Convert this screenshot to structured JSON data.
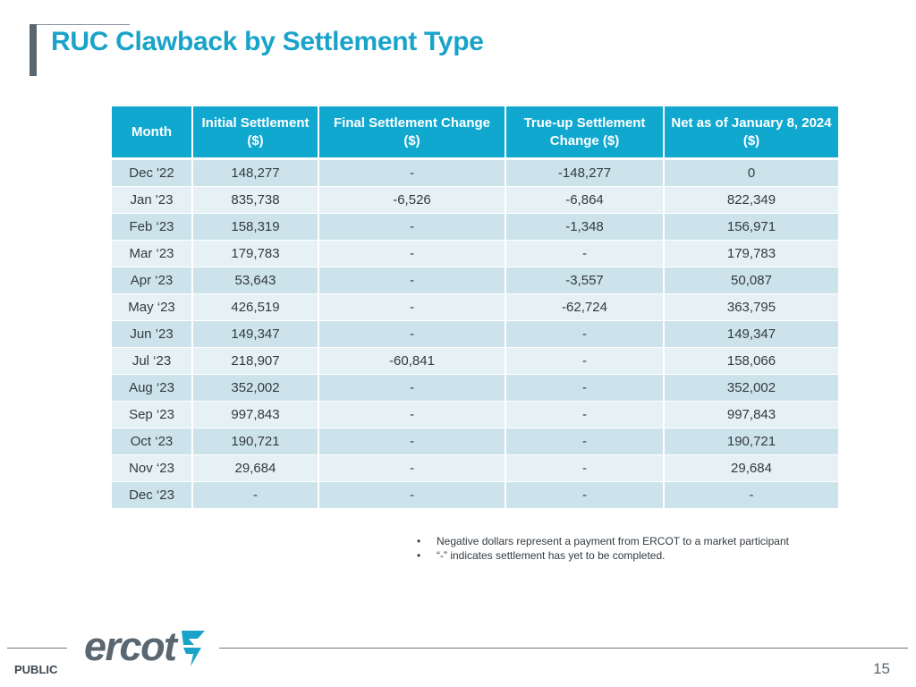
{
  "slide": {
    "title": "RUC Clawback by Settlement Type",
    "page_number": "15",
    "classification": "PUBLIC",
    "logo_text": "ercot",
    "brand_color": "#1aa3c9",
    "header_color": "#11a8cf"
  },
  "table": {
    "headers": {
      "month": "Month",
      "initial": "Initial Settlement ($)",
      "final": "Final Settlement Change ($)",
      "trueup": "True-up Settlement Change ($)",
      "net": "Net as of January 8, 2024 ($)"
    },
    "rows": [
      {
        "month": "Dec '22",
        "initial": "148,277",
        "final": "-",
        "trueup": "-148,277",
        "net": "0"
      },
      {
        "month": "Jan '23",
        "initial": "835,738",
        "final": "-6,526",
        "trueup": "-6,864",
        "net": "822,349"
      },
      {
        "month": "Feb ‘23",
        "initial": "158,319",
        "final": "-",
        "trueup": "-1,348",
        "net": "156,971"
      },
      {
        "month": "Mar ‘23",
        "initial": "179,783",
        "final": "-",
        "trueup": "-",
        "net": "179,783"
      },
      {
        "month": "Apr ‘23",
        "initial": "53,643",
        "final": "-",
        "trueup": "-3,557",
        "net": "50,087"
      },
      {
        "month": "May ‘23",
        "initial": "426,519",
        "final": "-",
        "trueup": "-62,724",
        "net": "363,795"
      },
      {
        "month": "Jun ’23",
        "initial": "149,347",
        "final": "-",
        "trueup": "-",
        "net": "149,347"
      },
      {
        "month": "Jul ‘23",
        "initial": "218,907",
        "final": "-60,841",
        "trueup": "-",
        "net": "158,066"
      },
      {
        "month": "Aug ‘23",
        "initial": "352,002",
        "final": "-",
        "trueup": "-",
        "net": "352,002"
      },
      {
        "month": "Sep ‘23",
        "initial": "997,843",
        "final": "-",
        "trueup": "-",
        "net": "997,843"
      },
      {
        "month": "Oct ‘23",
        "initial": "190,721",
        "final": "-",
        "trueup": "-",
        "net": "190,721"
      },
      {
        "month": "Nov ‘23",
        "initial": "29,684",
        "final": "-",
        "trueup": "-",
        "net": "29,684"
      },
      {
        "month": "Dec ‘23",
        "initial": "-",
        "final": "-",
        "trueup": "-",
        "net": "-"
      }
    ]
  },
  "notes": [
    "Negative dollars represent a payment from ERCOT to a market participant",
    "“-” indicates settlement has yet to be completed."
  ]
}
